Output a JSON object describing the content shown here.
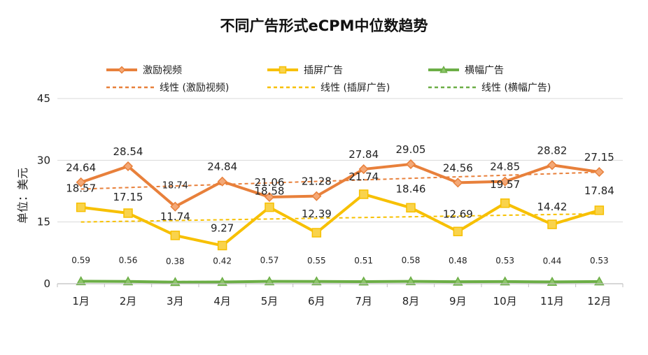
{
  "chart_data": {
    "type": "line",
    "title": "不同广告形式eCPM中位数趋势",
    "ylabel": "单位：美元",
    "xlabel": "",
    "categories": [
      "1月",
      "2月",
      "3月",
      "4月",
      "5月",
      "6月",
      "7月",
      "8月",
      "9月",
      "10月",
      "11月",
      "12月"
    ],
    "ylim": [
      0,
      45
    ],
    "yticks": [
      0,
      15,
      30,
      45
    ],
    "legend_position": "top",
    "series": [
      {
        "name": "激励视频",
        "color": "#e8803b",
        "marker": "diamond",
        "values": [
          24.64,
          28.54,
          18.74,
          24.84,
          21.06,
          21.28,
          27.84,
          29.05,
          24.56,
          24.85,
          28.82,
          27.15
        ],
        "labels": [
          "24.64",
          "28.54",
          "18.74",
          "24.84",
          "21.06",
          "21.28",
          "27.84",
          "29.05",
          "24.56",
          "24.85",
          "28.82",
          "27.15"
        ]
      },
      {
        "name": "插屏广告",
        "color": "#f7c000",
        "marker": "square",
        "values": [
          18.57,
          17.15,
          11.74,
          9.27,
          18.58,
          12.39,
          21.74,
          18.46,
          12.69,
          19.57,
          14.42,
          17.84
        ],
        "labels": [
          "18.57",
          "17.15",
          "11.74",
          "9.27",
          "18.58",
          "12.39",
          "21.74",
          "18.46",
          "12.69",
          "19.57",
          "14.42",
          "17.84"
        ]
      },
      {
        "name": "横幅广告",
        "color": "#6cae46",
        "marker": "triangle",
        "values": [
          0.59,
          0.56,
          0.38,
          0.42,
          0.57,
          0.55,
          0.51,
          0.58,
          0.48,
          0.53,
          0.44,
          0.53
        ],
        "labels": [
          "0.59",
          "0.56",
          "0.38",
          "0.42",
          "0.57",
          "0.55",
          "0.51",
          "0.58",
          "0.48",
          "0.53",
          "0.44",
          "0.53"
        ]
      }
    ],
    "trendlines": [
      {
        "name": "线性 (激励视频)",
        "color": "#e8803b",
        "start": 23.0,
        "end": 27.1
      },
      {
        "name": "线性 (插屏广告)",
        "color": "#f7c000",
        "start": 15.0,
        "end": 17.0
      },
      {
        "name": "线性 (横幅广告)",
        "color": "#6cae46",
        "start": 0.55,
        "end": 0.45
      }
    ],
    "grid": true
  }
}
